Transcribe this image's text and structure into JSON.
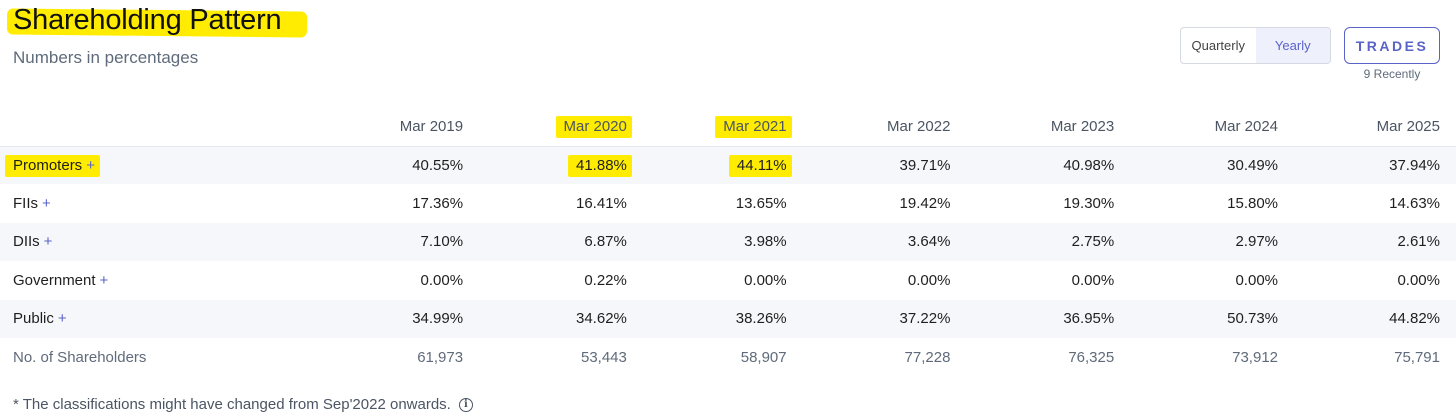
{
  "header": {
    "title": "Shareholding Pattern",
    "subtitle": "Numbers in percentages"
  },
  "toggle": {
    "quarterly": "Quarterly",
    "yearly": "Yearly",
    "active": "yearly"
  },
  "trades": {
    "label": "TRADES",
    "sub": "9 Recently"
  },
  "table": {
    "columns": [
      "Mar 2019",
      "Mar 2020",
      "Mar 2021",
      "Mar 2022",
      "Mar 2023",
      "Mar 2024",
      "Mar 2025"
    ],
    "rows": [
      {
        "label": "Promoters",
        "plus": "+",
        "values": [
          "40.55%",
          "41.88%",
          "44.11%",
          "39.71%",
          "40.98%",
          "30.49%",
          "37.94%"
        ]
      },
      {
        "label": "FIIs",
        "plus": "+",
        "values": [
          "17.36%",
          "16.41%",
          "13.65%",
          "19.42%",
          "19.30%",
          "15.80%",
          "14.63%"
        ]
      },
      {
        "label": "DIIs",
        "plus": "+",
        "values": [
          "7.10%",
          "6.87%",
          "3.98%",
          "3.64%",
          "2.75%",
          "2.97%",
          "2.61%"
        ]
      },
      {
        "label": "Government",
        "plus": "+",
        "values": [
          "0.00%",
          "0.22%",
          "0.00%",
          "0.00%",
          "0.00%",
          "0.00%",
          "0.00%"
        ]
      },
      {
        "label": "Public",
        "plus": "+",
        "values": [
          "34.99%",
          "34.62%",
          "38.26%",
          "37.22%",
          "36.95%",
          "50.73%",
          "44.82%"
        ]
      },
      {
        "label": "No. of Shareholders",
        "plus": "",
        "values": [
          "61,973",
          "53,443",
          "58,907",
          "77,228",
          "76,325",
          "73,912",
          "75,791"
        ]
      }
    ]
  },
  "footnote": {
    "text": "* The classifications might have changed from Sep'2022 onwards.",
    "icon": "info-icon"
  },
  "colors": {
    "accent": "#5a63c8",
    "highlight": "#ffec00",
    "stripe": "#f6f7fb"
  }
}
